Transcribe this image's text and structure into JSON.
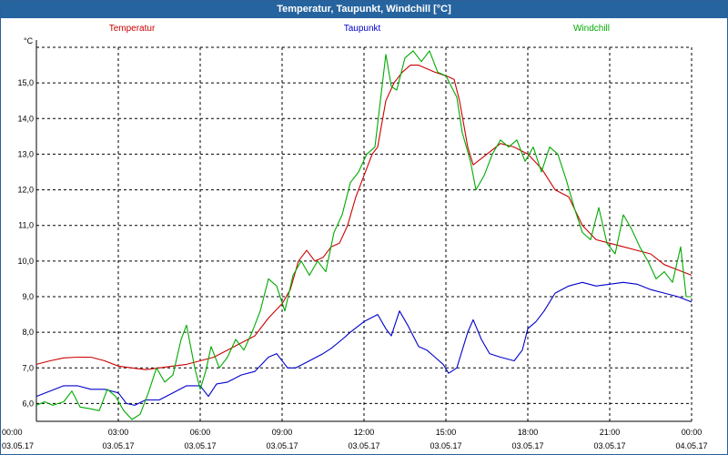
{
  "window": {
    "title": "Temperatur, Taupunkt, Windchill [°C]"
  },
  "colors": {
    "temperatur": "#cc0000",
    "taupunkt": "#0000cc",
    "windchill": "#00aa00",
    "titlebar": "#26649f"
  },
  "chart_data": {
    "type": "line",
    "title": "Temperatur, Taupunkt, Windchill [°C]",
    "ylabel": "°C",
    "ylim": [
      5.5,
      16.0
    ],
    "yticks": [
      6.0,
      7.0,
      8.0,
      9.0,
      10.0,
      11.0,
      12.0,
      13.0,
      14.0,
      15.0
    ],
    "ytick_labels": [
      "6,0",
      "7,0",
      "8,0",
      "9,0",
      "10,0",
      "11,0",
      "12,0",
      "13,0",
      "14,0",
      "15,0"
    ],
    "xlim": [
      0,
      24
    ],
    "xticks": [
      0,
      3,
      6,
      9,
      12,
      15,
      18,
      21,
      24
    ],
    "xtick_time_labels": [
      "00:00",
      "03:00",
      "06:00",
      "09:00",
      "12:00",
      "15:00",
      "18:00",
      "21:00",
      "00:00"
    ],
    "xtick_date_labels": [
      "03.05.17",
      "03.05.17",
      "03.05.17",
      "03.05.17",
      "03.05.17",
      "03.05.17",
      "03.05.17",
      "03.05.17",
      "04.05.17"
    ],
    "grid": true,
    "series": [
      {
        "name": "Temperatur",
        "color": "#cc0000",
        "points": [
          [
            0,
            7.1
          ],
          [
            0.5,
            7.2
          ],
          [
            1,
            7.28
          ],
          [
            1.5,
            7.3
          ],
          [
            2,
            7.3
          ],
          [
            2.5,
            7.2
          ],
          [
            3,
            7.05
          ],
          [
            3.5,
            7.0
          ],
          [
            4,
            6.95
          ],
          [
            4.5,
            7.0
          ],
          [
            5,
            7.05
          ],
          [
            5.5,
            7.1
          ],
          [
            6,
            7.2
          ],
          [
            6.5,
            7.3
          ],
          [
            7,
            7.5
          ],
          [
            7.5,
            7.7
          ],
          [
            8,
            7.9
          ],
          [
            8.5,
            8.4
          ],
          [
            9,
            8.8
          ],
          [
            9.3,
            9.2
          ],
          [
            9.6,
            10.0
          ],
          [
            9.9,
            10.3
          ],
          [
            10.2,
            10.0
          ],
          [
            10.5,
            10.1
          ],
          [
            10.8,
            10.4
          ],
          [
            11.1,
            10.5
          ],
          [
            11.4,
            11.0
          ],
          [
            11.7,
            11.8
          ],
          [
            12,
            12.4
          ],
          [
            12.3,
            13.0
          ],
          [
            12.5,
            13.2
          ],
          [
            12.8,
            14.5
          ],
          [
            13.1,
            15.0
          ],
          [
            13.4,
            15.3
          ],
          [
            13.7,
            15.5
          ],
          [
            14.0,
            15.5
          ],
          [
            14.3,
            15.4
          ],
          [
            14.6,
            15.3
          ],
          [
            15.0,
            15.2
          ],
          [
            15.3,
            15.1
          ],
          [
            15.5,
            14.5
          ],
          [
            15.8,
            13.2
          ],
          [
            16.0,
            12.7
          ],
          [
            16.5,
            13.0
          ],
          [
            17.0,
            13.3
          ],
          [
            17.5,
            13.2
          ],
          [
            18.0,
            13.0
          ],
          [
            18.5,
            12.6
          ],
          [
            19.0,
            12.0
          ],
          [
            19.5,
            11.8
          ],
          [
            20.0,
            11.0
          ],
          [
            20.5,
            10.6
          ],
          [
            21.0,
            10.5
          ],
          [
            21.5,
            10.4
          ],
          [
            22.0,
            10.3
          ],
          [
            22.5,
            10.2
          ],
          [
            23.0,
            9.9
          ],
          [
            23.5,
            9.75
          ],
          [
            24.0,
            9.6
          ]
        ]
      },
      {
        "name": "Taupunkt",
        "color": "#0000cc",
        "points": [
          [
            0,
            6.2
          ],
          [
            0.5,
            6.35
          ],
          [
            1,
            6.5
          ],
          [
            1.5,
            6.5
          ],
          [
            2,
            6.4
          ],
          [
            2.5,
            6.4
          ],
          [
            3,
            6.3
          ],
          [
            3.3,
            6.0
          ],
          [
            3.6,
            5.95
          ],
          [
            4,
            6.1
          ],
          [
            4.5,
            6.1
          ],
          [
            5,
            6.3
          ],
          [
            5.5,
            6.5
          ],
          [
            6,
            6.5
          ],
          [
            6.3,
            6.2
          ],
          [
            6.6,
            6.55
          ],
          [
            7,
            6.6
          ],
          [
            7.5,
            6.8
          ],
          [
            8,
            6.9
          ],
          [
            8.5,
            7.3
          ],
          [
            8.8,
            7.4
          ],
          [
            9.2,
            7.0
          ],
          [
            9.5,
            7.0
          ],
          [
            10,
            7.2
          ],
          [
            10.5,
            7.4
          ],
          [
            10.8,
            7.55
          ],
          [
            11.2,
            7.8
          ],
          [
            11.5,
            8.0
          ],
          [
            12,
            8.3
          ],
          [
            12.5,
            8.5
          ],
          [
            12.8,
            8.1
          ],
          [
            13.0,
            7.9
          ],
          [
            13.3,
            8.6
          ],
          [
            13.6,
            8.2
          ],
          [
            14.0,
            7.6
          ],
          [
            14.3,
            7.5
          ],
          [
            14.6,
            7.3
          ],
          [
            14.9,
            7.1
          ],
          [
            15.1,
            6.85
          ],
          [
            15.4,
            7.0
          ],
          [
            15.8,
            8.0
          ],
          [
            16.0,
            8.35
          ],
          [
            16.3,
            7.8
          ],
          [
            16.6,
            7.4
          ],
          [
            17.0,
            7.3
          ],
          [
            17.5,
            7.2
          ],
          [
            17.8,
            7.5
          ],
          [
            18.0,
            8.1
          ],
          [
            18.3,
            8.3
          ],
          [
            18.6,
            8.6
          ],
          [
            19.0,
            9.1
          ],
          [
            19.5,
            9.3
          ],
          [
            20.0,
            9.4
          ],
          [
            20.5,
            9.3
          ],
          [
            21.0,
            9.35
          ],
          [
            21.5,
            9.4
          ],
          [
            22.0,
            9.35
          ],
          [
            22.5,
            9.2
          ],
          [
            23.0,
            9.1
          ],
          [
            23.5,
            9.0
          ],
          [
            24.0,
            8.85
          ]
        ]
      },
      {
        "name": "Windchill",
        "color": "#00aa00",
        "points": [
          [
            0,
            5.95
          ],
          [
            0.3,
            6.05
          ],
          [
            0.6,
            5.95
          ],
          [
            1,
            6.05
          ],
          [
            1.3,
            6.35
          ],
          [
            1.6,
            5.9
          ],
          [
            2,
            5.85
          ],
          [
            2.3,
            5.8
          ],
          [
            2.6,
            6.4
          ],
          [
            2.9,
            6.2
          ],
          [
            3.2,
            5.8
          ],
          [
            3.5,
            5.55
          ],
          [
            3.8,
            5.7
          ],
          [
            4.1,
            6.3
          ],
          [
            4.4,
            7.0
          ],
          [
            4.7,
            6.6
          ],
          [
            5,
            6.8
          ],
          [
            5.3,
            7.8
          ],
          [
            5.5,
            8.2
          ],
          [
            5.8,
            7.0
          ],
          [
            6,
            6.4
          ],
          [
            6.2,
            6.9
          ],
          [
            6.4,
            7.6
          ],
          [
            6.7,
            7.0
          ],
          [
            7,
            7.3
          ],
          [
            7.3,
            7.8
          ],
          [
            7.6,
            7.5
          ],
          [
            7.9,
            8.0
          ],
          [
            8.2,
            8.6
          ],
          [
            8.5,
            9.5
          ],
          [
            8.8,
            9.3
          ],
          [
            9.1,
            8.6
          ],
          [
            9.4,
            9.6
          ],
          [
            9.7,
            10.0
          ],
          [
            10,
            9.6
          ],
          [
            10.3,
            10.0
          ],
          [
            10.6,
            9.7
          ],
          [
            10.9,
            10.8
          ],
          [
            11.2,
            11.3
          ],
          [
            11.5,
            12.2
          ],
          [
            11.8,
            12.5
          ],
          [
            12.1,
            13.0
          ],
          [
            12.4,
            13.2
          ],
          [
            12.6,
            14.5
          ],
          [
            12.8,
            15.8
          ],
          [
            13.0,
            14.9
          ],
          [
            13.2,
            14.8
          ],
          [
            13.5,
            15.7
          ],
          [
            13.8,
            15.9
          ],
          [
            14.1,
            15.6
          ],
          [
            14.4,
            15.9
          ],
          [
            14.7,
            15.3
          ],
          [
            15.0,
            15.2
          ],
          [
            15.2,
            14.9
          ],
          [
            15.4,
            14.6
          ],
          [
            15.6,
            13.6
          ],
          [
            15.9,
            12.8
          ],
          [
            16.1,
            12.0
          ],
          [
            16.4,
            12.4
          ],
          [
            16.7,
            13.0
          ],
          [
            17.0,
            13.4
          ],
          [
            17.3,
            13.2
          ],
          [
            17.6,
            13.4
          ],
          [
            17.9,
            12.8
          ],
          [
            18.2,
            13.2
          ],
          [
            18.5,
            12.5
          ],
          [
            18.8,
            13.2
          ],
          [
            19.1,
            13.0
          ],
          [
            19.4,
            12.3
          ],
          [
            19.7,
            11.5
          ],
          [
            20.0,
            10.8
          ],
          [
            20.3,
            10.6
          ],
          [
            20.6,
            11.5
          ],
          [
            20.9,
            10.5
          ],
          [
            21.2,
            10.2
          ],
          [
            21.5,
            11.3
          ],
          [
            21.8,
            10.9
          ],
          [
            22.1,
            10.4
          ],
          [
            22.4,
            10.0
          ],
          [
            22.7,
            9.5
          ],
          [
            23.0,
            9.7
          ],
          [
            23.3,
            9.4
          ],
          [
            23.6,
            10.4
          ],
          [
            23.8,
            9.0
          ],
          [
            24.0,
            9.0
          ]
        ]
      }
    ]
  }
}
